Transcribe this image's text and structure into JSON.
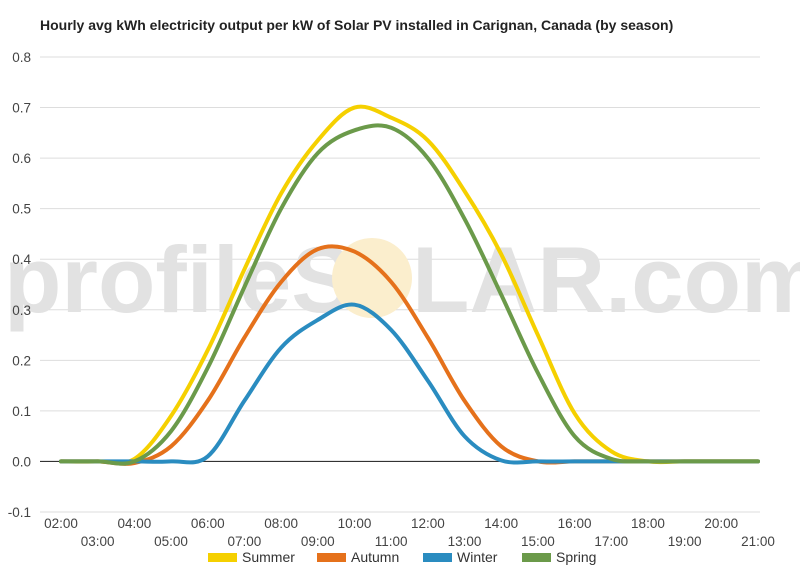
{
  "watermark": {
    "left": "profileS",
    "right": "LAR.com"
  },
  "chart_data": {
    "type": "line",
    "title": "Hourly avg kWh electricity output per kW of Solar PV installed in Carignan, Canada (by season)",
    "xlabel": "",
    "ylabel": "",
    "ylim": [
      -0.1,
      0.8
    ],
    "yticks": [
      "0.8",
      "0.7",
      "0.6",
      "0.5",
      "0.4",
      "0.3",
      "0.2",
      "0.1",
      "0.0",
      "-0.1"
    ],
    "categories": [
      "02:00",
      "03:00",
      "04:00",
      "05:00",
      "06:00",
      "07:00",
      "08:00",
      "09:00",
      "10:00",
      "11:00",
      "12:00",
      "13:00",
      "14:00",
      "15:00",
      "16:00",
      "17:00",
      "18:00",
      "19:00",
      "20:00",
      "21:00"
    ],
    "grid": true,
    "legend_position": "bottom",
    "series": [
      {
        "name": "Summer",
        "color": "#f5d000",
        "values": [
          0.0,
          0.0,
          0.005,
          0.09,
          0.22,
          0.38,
          0.53,
          0.635,
          0.7,
          0.68,
          0.635,
          0.535,
          0.41,
          0.25,
          0.095,
          0.02,
          0.0,
          0.0,
          0.0,
          0.0
        ]
      },
      {
        "name": "Autumn",
        "color": "#e5711b",
        "values": [
          0.0,
          0.0,
          -0.003,
          0.03,
          0.12,
          0.245,
          0.355,
          0.42,
          0.415,
          0.355,
          0.245,
          0.12,
          0.03,
          0.0,
          0.0,
          0.0,
          0.0,
          0.0,
          0.0,
          0.0
        ]
      },
      {
        "name": "Winter",
        "color": "#2a8cc0",
        "values": [
          0.0,
          0.0,
          0.0,
          0.0,
          0.01,
          0.12,
          0.225,
          0.28,
          0.31,
          0.26,
          0.16,
          0.05,
          0.002,
          0.0,
          0.0,
          0.0,
          0.0,
          0.0,
          0.0,
          0.0
        ]
      },
      {
        "name": "Spring",
        "color": "#6b9a4a",
        "values": [
          0.0,
          0.0,
          0.0,
          0.06,
          0.185,
          0.345,
          0.5,
          0.61,
          0.655,
          0.66,
          0.6,
          0.48,
          0.33,
          0.175,
          0.05,
          0.005,
          0.0,
          0.0,
          0.0,
          0.0
        ]
      }
    ]
  }
}
